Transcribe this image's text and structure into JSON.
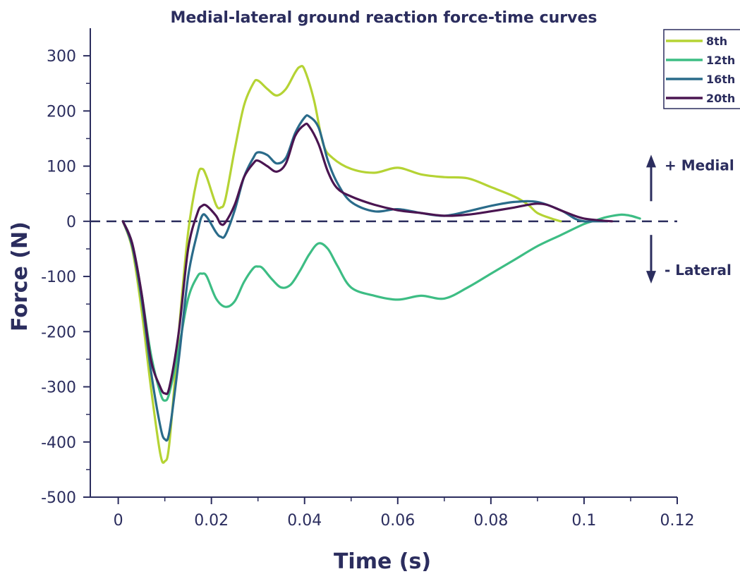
{
  "chart_data": {
    "type": "line",
    "title": "Medial-lateral ground reaction force-time curves",
    "xlabel": "Time (s)",
    "ylabel": "Force (N)",
    "xlim": [
      -0.006,
      0.12
    ],
    "ylim": [
      -500,
      350
    ],
    "x_ticks": [
      0,
      0.02,
      0.04,
      0.06,
      0.08,
      0.1,
      0.12
    ],
    "x_tick_labels": [
      "0",
      "0.02",
      "0.04",
      "0.06",
      "0.08",
      "0.1",
      "0.12"
    ],
    "y_ticks": [
      -500,
      -400,
      -300,
      -200,
      -100,
      0,
      100,
      200,
      300
    ],
    "y_tick_labels": [
      "-500",
      "-400",
      "-300",
      "-200",
      "-100",
      "0",
      "100",
      "200",
      "300"
    ],
    "zero_line": true,
    "grid": false,
    "legend_position": "top-right",
    "annotations": [
      {
        "text": "+ Medial",
        "direction": "up",
        "y": 85
      },
      {
        "text": "- Lateral",
        "direction": "down",
        "y": -95
      }
    ],
    "colors": {
      "axis": "#2b2d5e",
      "zero_line": "#2b2d5e"
    },
    "series": [
      {
        "name": "8th",
        "color": "#b5d334",
        "x": [
          0.001,
          0.003,
          0.005,
          0.007,
          0.009,
          0.01,
          0.011,
          0.013,
          0.015,
          0.017,
          0.018,
          0.019,
          0.021,
          0.022,
          0.023,
          0.025,
          0.027,
          0.029,
          0.03,
          0.032,
          0.034,
          0.036,
          0.038,
          0.039,
          0.04,
          0.042,
          0.044,
          0.046,
          0.05,
          0.055,
          0.06,
          0.065,
          0.07,
          0.075,
          0.08,
          0.085,
          0.088,
          0.09,
          0.093,
          0.095
        ],
        "values": [
          0,
          -50,
          -160,
          -300,
          -420,
          -435,
          -400,
          -200,
          -20,
          80,
          95,
          80,
          30,
          25,
          40,
          130,
          210,
          250,
          255,
          240,
          228,
          240,
          270,
          280,
          275,
          220,
          140,
          115,
          95,
          88,
          97,
          85,
          80,
          78,
          62,
          45,
          30,
          15,
          5,
          0
        ]
      },
      {
        "name": "12th",
        "color": "#3dbd84",
        "x": [
          0.001,
          0.003,
          0.005,
          0.007,
          0.009,
          0.01,
          0.011,
          0.013,
          0.015,
          0.017,
          0.018,
          0.019,
          0.021,
          0.023,
          0.025,
          0.027,
          0.029,
          0.03,
          0.031,
          0.033,
          0.035,
          0.037,
          0.039,
          0.041,
          0.043,
          0.045,
          0.047,
          0.05,
          0.055,
          0.06,
          0.065,
          0.07,
          0.075,
          0.08,
          0.085,
          0.09,
          0.095,
          0.1,
          0.103,
          0.105,
          0.108,
          0.11,
          0.112
        ],
        "values": [
          0,
          -40,
          -130,
          -240,
          -310,
          -325,
          -310,
          -230,
          -140,
          -100,
          -95,
          -100,
          -140,
          -155,
          -145,
          -110,
          -85,
          -82,
          -85,
          -105,
          -120,
          -115,
          -90,
          -60,
          -40,
          -50,
          -80,
          -120,
          -135,
          -142,
          -135,
          -140,
          -120,
          -95,
          -70,
          -45,
          -25,
          -5,
          3,
          8,
          12,
          10,
          5
        ]
      },
      {
        "name": "16th",
        "color": "#2a6b8a",
        "x": [
          0.001,
          0.003,
          0.005,
          0.007,
          0.009,
          0.01,
          0.011,
          0.013,
          0.015,
          0.017,
          0.018,
          0.019,
          0.021,
          0.022,
          0.023,
          0.025,
          0.027,
          0.029,
          0.03,
          0.032,
          0.034,
          0.036,
          0.038,
          0.04,
          0.041,
          0.043,
          0.045,
          0.047,
          0.05,
          0.055,
          0.06,
          0.065,
          0.07,
          0.075,
          0.08,
          0.085,
          0.09,
          0.095,
          0.098,
          0.1,
          0.102,
          0.105
        ],
        "values": [
          0,
          -45,
          -140,
          -270,
          -370,
          -395,
          -380,
          -250,
          -100,
          -20,
          10,
          8,
          -20,
          -28,
          -25,
          20,
          80,
          115,
          125,
          120,
          105,
          115,
          160,
          188,
          190,
          170,
          110,
          70,
          35,
          18,
          22,
          15,
          10,
          18,
          28,
          35,
          35,
          20,
          5,
          0,
          0,
          0
        ]
      },
      {
        "name": "20th",
        "color": "#4a1551",
        "x": [
          0.001,
          0.003,
          0.005,
          0.007,
          0.009,
          0.01,
          0.011,
          0.013,
          0.015,
          0.017,
          0.018,
          0.019,
          0.021,
          0.022,
          0.023,
          0.025,
          0.027,
          0.029,
          0.03,
          0.032,
          0.034,
          0.036,
          0.038,
          0.04,
          0.041,
          0.043,
          0.045,
          0.047,
          0.05,
          0.055,
          0.06,
          0.065,
          0.07,
          0.075,
          0.08,
          0.085,
          0.088,
          0.09,
          0.092,
          0.095,
          0.098,
          0.1,
          0.103,
          0.106
        ],
        "values": [
          0,
          -40,
          -130,
          -250,
          -300,
          -312,
          -300,
          -200,
          -50,
          15,
          28,
          28,
          10,
          -5,
          -2,
          30,
          80,
          105,
          110,
          100,
          90,
          105,
          155,
          175,
          172,
          140,
          90,
          60,
          45,
          30,
          20,
          15,
          10,
          12,
          18,
          25,
          30,
          32,
          30,
          20,
          10,
          5,
          2,
          0
        ]
      }
    ]
  }
}
